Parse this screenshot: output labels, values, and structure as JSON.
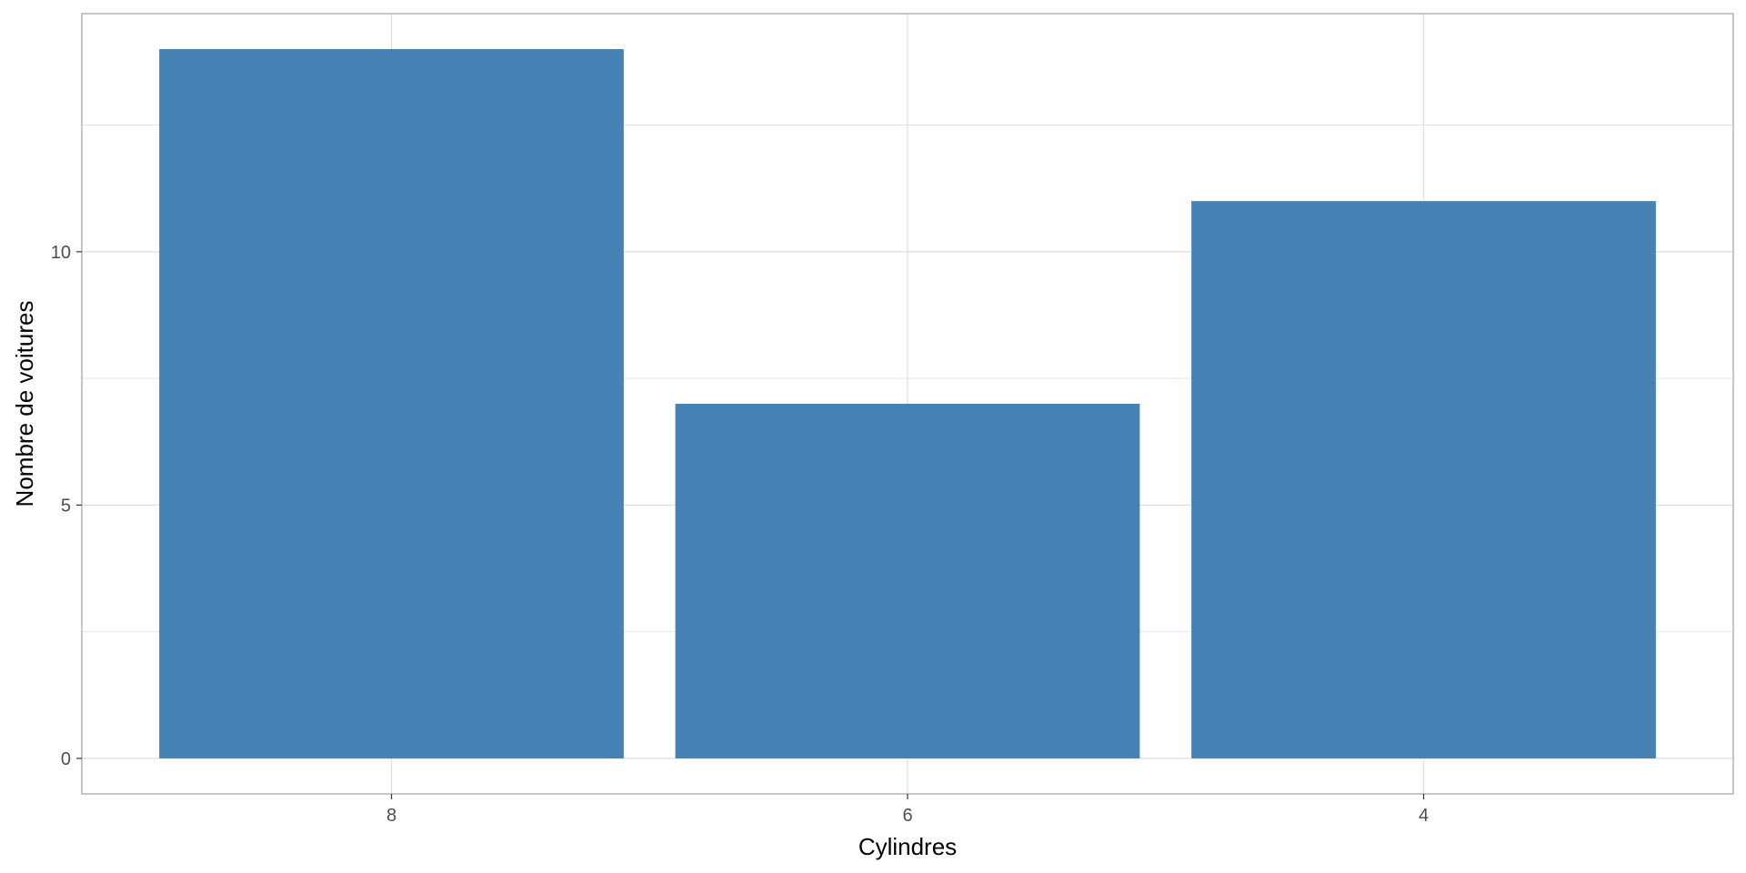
{
  "chart_data": {
    "type": "bar",
    "categories": [
      "8",
      "6",
      "4"
    ],
    "values": [
      14,
      7,
      11
    ],
    "xlabel": "Cylindres",
    "ylabel": "Nombre de voitures",
    "ylim": [
      -0.7,
      14.7
    ],
    "yticks": [
      0,
      5,
      10
    ],
    "y_minor_ticks": [
      2.5,
      7.5,
      12.5
    ],
    "grid": true,
    "legend": "none",
    "colors": {
      "bar": "#4682B4",
      "grid": "#DEDEDE",
      "panel_border": "#B3B3B3",
      "tick_text": "#4D4D4D"
    }
  }
}
